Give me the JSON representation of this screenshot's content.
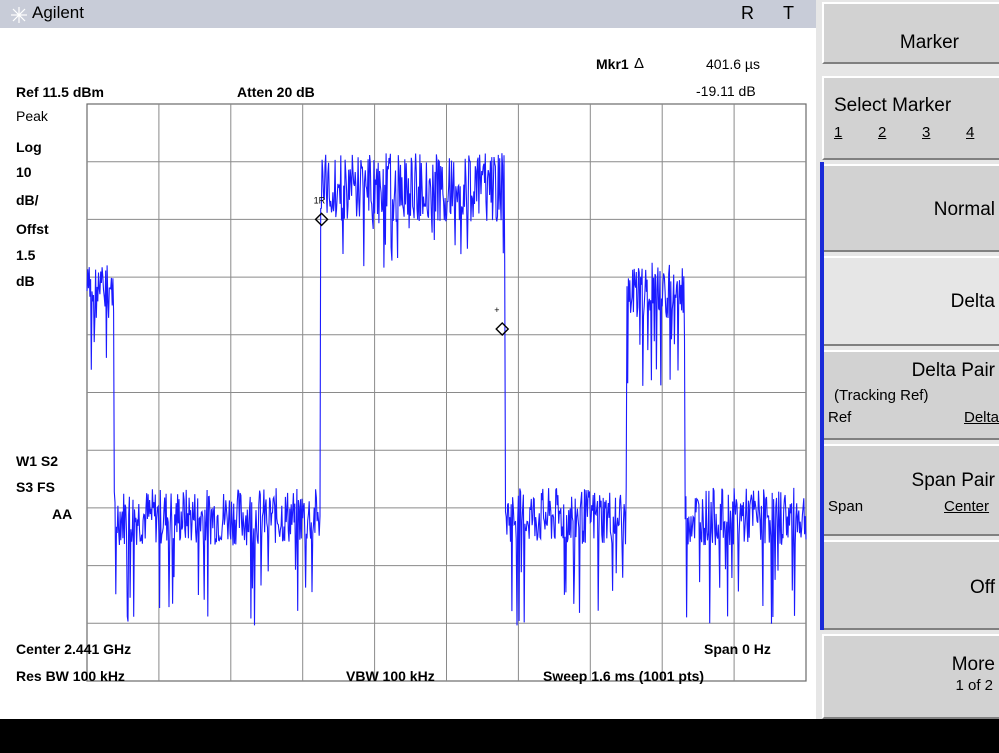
{
  "titlebar": {
    "app_name": "Agilent",
    "r": "R",
    "t": "T"
  },
  "annotations": {
    "marker_readout_label": "Mkr1",
    "marker_readout_delta": "Δ",
    "marker_readout_time": "401.6 µs",
    "marker_readout_amplitude": "-19.11 dB",
    "ref_level": "Ref 11.5 dBm",
    "attenuation": "Atten 20 dB",
    "detector": "Peak",
    "scale_type": "Log",
    "scale_value": "10",
    "scale_unit": "dB/",
    "offset_label": "Offst",
    "offset_value": "1.5",
    "offset_unit": "dB",
    "trace_w1_s2": "W1 S2",
    "trace_s3_fs": "S3 FS",
    "trace_aa": "AA",
    "center_freq": "Center 2.441 GHz",
    "span": "Span 0 Hz",
    "res_bw": "Res BW 100 kHz",
    "vbw": "VBW 100 kHz",
    "sweep": "Sweep 1.6 ms (1001 pts)",
    "marker1_label": "1R",
    "marker2_label": "+"
  },
  "softkeys": {
    "marker": "Marker",
    "select_marker": "Select Marker",
    "select_marker_options": [
      "1",
      "2",
      "3",
      "4"
    ],
    "normal": "Normal",
    "delta": "Delta",
    "delta_pair": "Delta Pair",
    "delta_pair_sub": "(Tracking Ref)",
    "delta_pair_ref": "Ref",
    "delta_pair_delta": "Delta",
    "span_pair": "Span Pair",
    "span_pair_span": "Span",
    "span_pair_center": "Center",
    "off": "Off",
    "more": "More",
    "more_page": "1 of 2"
  },
  "chart_data": {
    "type": "line",
    "trace_color": "#1a1aff",
    "ylim_db": [
      -88.5,
      11.5
    ],
    "xlim_ms": [
      0,
      1.6
    ],
    "y_divisions": 10,
    "x_divisions": 10,
    "segments": [
      {
        "x_start_ms": 0.0,
        "x_end_ms": 0.06,
        "level_db": -16
      },
      {
        "x_start_ms": 0.06,
        "x_end_ms": 0.14,
        "level_db": -60
      },
      {
        "x_start_ms": 0.14,
        "x_end_ms": 0.5,
        "level_db": -60
      },
      {
        "x_start_ms": 0.52,
        "x_end_ms": 0.93,
        "level_db": 3
      },
      {
        "x_start_ms": 0.93,
        "x_end_ms": 1.2,
        "level_db": -60
      },
      {
        "x_start_ms": 1.2,
        "x_end_ms": 1.33,
        "level_db": -16
      },
      {
        "x_start_ms": 1.33,
        "x_end_ms": 1.6,
        "level_db": -60
      }
    ],
    "markers": [
      {
        "name": "1R",
        "x_ms": 0.522,
        "y_db": -8.5
      },
      {
        "name": "1",
        "x_ms": 0.924,
        "y_db": -27.5
      }
    ]
  }
}
